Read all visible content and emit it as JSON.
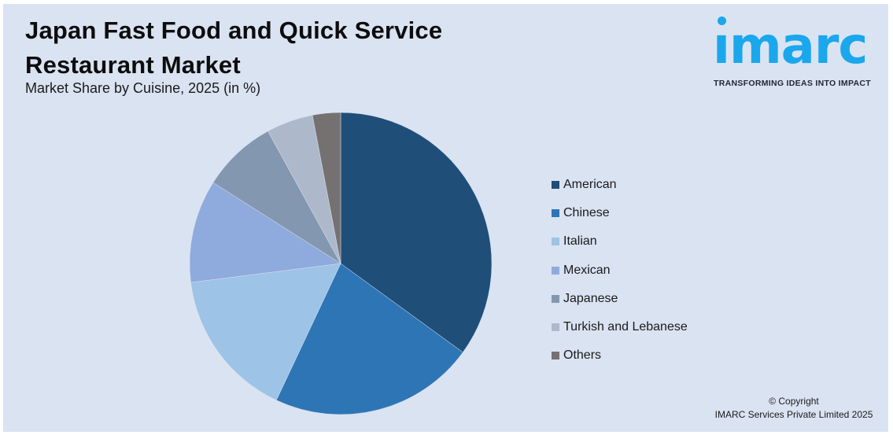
{
  "header": {
    "title_line1": "Japan Fast Food and Quick Service",
    "title_line2": "Restaurant Market",
    "subtitle": "Market Share by Cuisine, 2025 (in %)"
  },
  "logo": {
    "wordmark": "ımarc",
    "tagline": "TRANSFORMING IDEAS INTO IMPACT",
    "color": "#1aa7ec"
  },
  "footer": {
    "copyright_line1": "© Copyright",
    "copyright_line2": "IMARC Services Private Limited 2025"
  },
  "chart_data": {
    "type": "pie",
    "title": "Japan Fast Food and Quick Service Restaurant Market",
    "subtitle": "Market Share by Cuisine, 2025 (in %)",
    "categories": [
      "American",
      "Chinese",
      "Italian",
      "Mexican",
      "Japanese",
      "Turkish and Lebanese",
      "Others"
    ],
    "values": [
      35,
      22,
      16,
      11,
      8,
      5,
      3
    ],
    "colors": [
      "#1f4e79",
      "#2e75b6",
      "#9dc3e6",
      "#8faadc",
      "#8497b0",
      "#adb9ca",
      "#767171"
    ],
    "start_angle": "12 o'clock, clockwise",
    "legend_position": "right",
    "data_labels": false
  }
}
